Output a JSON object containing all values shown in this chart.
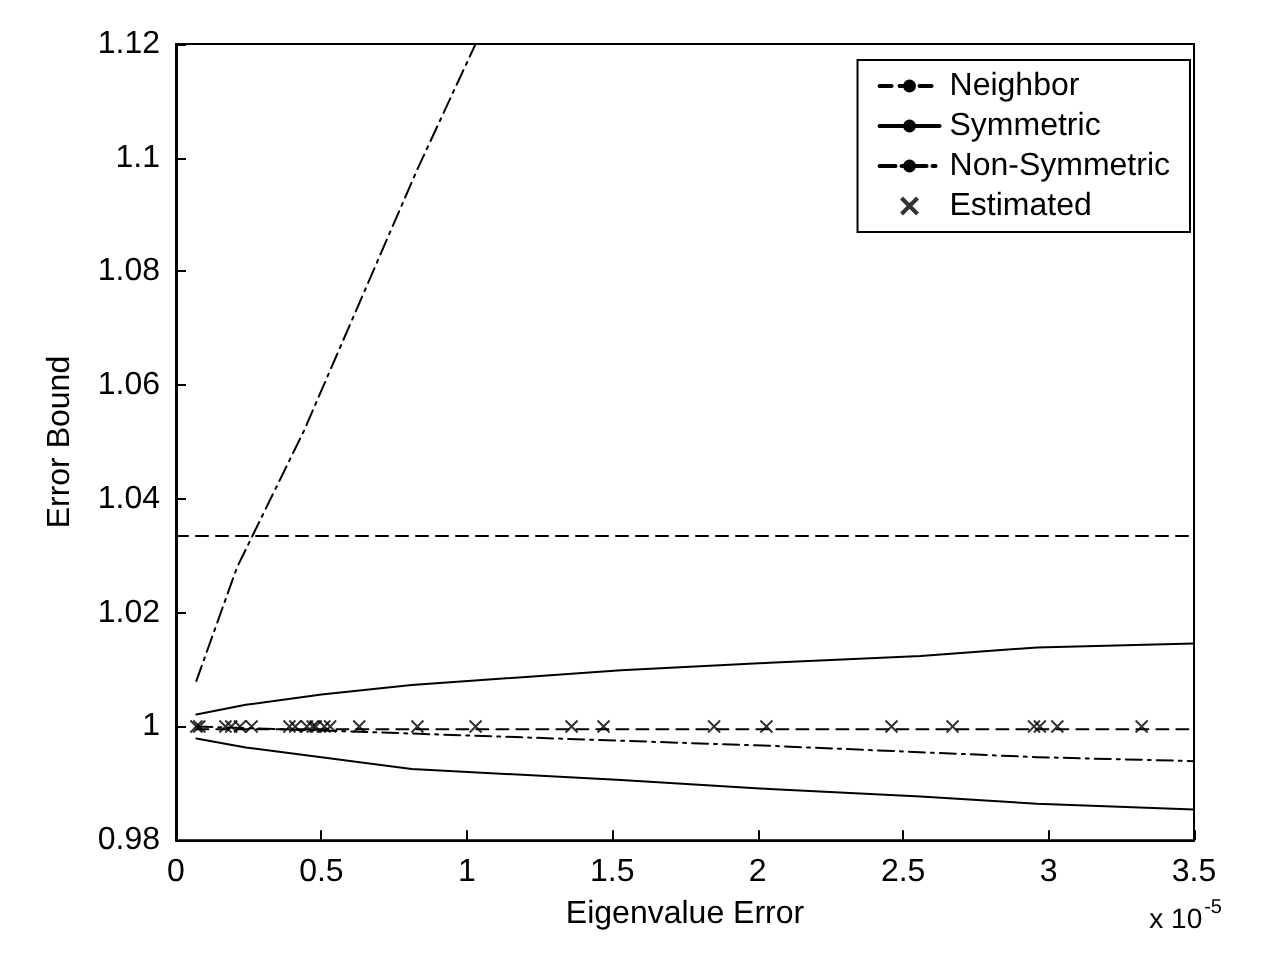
{
  "chart_data": {
    "type": "line",
    "xlabel": "Eigenvalue Error",
    "ylabel": "Error Bound",
    "annotations": [
      "x 10$^{-5}$"
    ],
    "xlim": [
      0,
      3.5
    ],
    "xticks": [
      0,
      0.5,
      1,
      1.5,
      2,
      2.5,
      3,
      3.5
    ],
    "ylim": [
      0.98,
      1.12
    ],
    "yticks": [
      0.98,
      1,
      1.02,
      1.04,
      1.06,
      1.08,
      1.1,
      1.12
    ],
    "grid": false,
    "legend": "top right",
    "marker": "none",
    "series": [
      {
        "name": "Neighbor",
        "color": "#000000",
        "line_style": "dashed",
        "x": [
          0,
          3.5
        ],
        "values": [
          1.0335,
          1.0335
        ]
      },
      {
        "color": "#000000",
        "line_style": "dashed",
        "x": [
          0.07,
          3.5
        ],
        "values": [
          0.9995,
          0.9995
        ]
      },
      {
        "name": "Symmetric",
        "color": "#000000",
        "line_style": "solid",
        "x": [
          0.07,
          0.24,
          0.5,
          0.81,
          1.53,
          2.04,
          2.56,
          2.96,
          3.5
        ],
        "values": [
          1.0021,
          1.0038,
          1.0056,
          1.0073,
          1.0099,
          1.0112,
          1.0124,
          1.0139,
          1.0146
        ]
      },
      {
        "color": "#000000",
        "line_style": "solid",
        "x": [
          0.07,
          0.24,
          0.5,
          0.81,
          1.53,
          2.04,
          2.56,
          2.96,
          3.5
        ],
        "values": [
          0.9979,
          0.9963,
          0.9946,
          0.9925,
          0.9906,
          0.989,
          0.9877,
          0.9864,
          0.9854
        ]
      },
      {
        "name": "Non-Symmetric",
        "color": "#000000",
        "line_style": "dashdot",
        "x": [
          0.07,
          0.21,
          0.44,
          0.83,
          1.03
        ],
        "values": [
          1.008,
          1.028,
          1.052,
          1.098,
          1.12
        ]
      },
      {
        "color": "#000000",
        "line_style": "dashdot",
        "x": [
          0.07,
          0.5,
          1.01,
          2.04,
          2.96,
          3.5
        ],
        "values": [
          1.0,
          0.9993,
          0.9984,
          0.9966,
          0.9946,
          0.9939
        ]
      },
      {
        "name": "Estimated",
        "type": "scatter",
        "color": "#000000",
        "marker": "cross",
        "x": [
          0.07,
          0.08,
          0.17,
          0.19,
          0.22,
          0.26,
          0.39,
          0.41,
          0.45,
          0.47,
          0.48,
          0.51,
          0.53,
          0.63,
          0.83,
          1.03,
          1.36,
          1.47,
          1.85,
          2.03,
          2.46,
          2.67,
          2.95,
          2.97,
          3.03,
          3.32
        ],
        "values": [
          1,
          1,
          1,
          1,
          1,
          1,
          1,
          1,
          1,
          1,
          1,
          1,
          1,
          1,
          1,
          1,
          1,
          1,
          1,
          1,
          1,
          1,
          1,
          1,
          1,
          1
        ]
      }
    ]
  }
}
